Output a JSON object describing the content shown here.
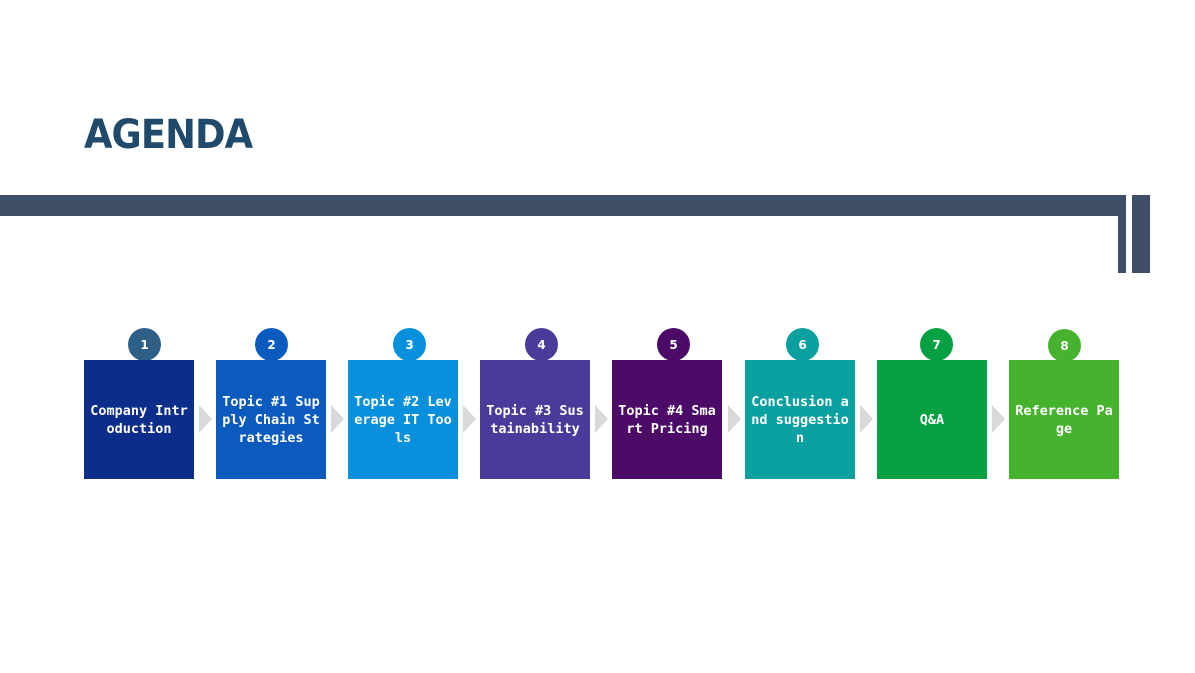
{
  "title": "AGENDA",
  "steps": [
    {
      "number": "1",
      "label": "Company Introduction",
      "color": "#0c2d8a",
      "badge_color": "#2e5f86"
    },
    {
      "number": "2",
      "label": "Topic #1 Supply Chain Strategies",
      "color": "#0b5bbf",
      "badge_color": "#0b5bbf"
    },
    {
      "number": "3",
      "label": "Topic #2 Leverage IT Tools",
      "color": "#0890dc",
      "badge_color": "#0890dc"
    },
    {
      "number": "4",
      "label": "Topic #3 Sustainability",
      "color": "#4a3a9a",
      "badge_color": "#4a3a9a"
    },
    {
      "number": "5",
      "label": "Topic #4 Smart Pricing",
      "color": "#4b0b66",
      "badge_color": "#4b0b66"
    },
    {
      "number": "6",
      "label": "Conclusion and suggestion",
      "color": "#0aa0a0",
      "badge_color": "#0aa0a0"
    },
    {
      "number": "7",
      "label": "Q&A",
      "color": "#07a043",
      "badge_color": "#07a043"
    },
    {
      "number": "8",
      "label": "Reference Page",
      "color": "#46b22e",
      "badge_color": "#46b22e"
    }
  ]
}
